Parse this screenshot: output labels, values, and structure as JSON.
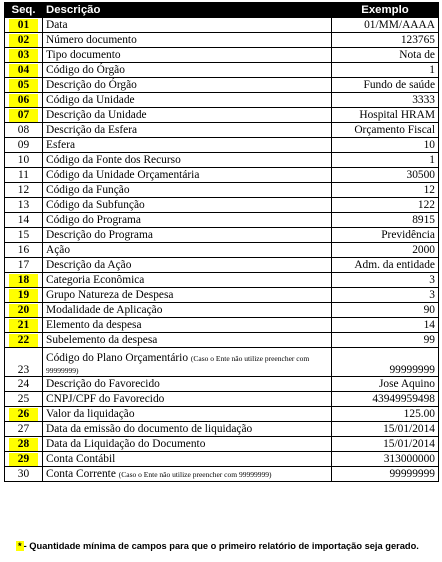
{
  "header": {
    "seq": "Seq.",
    "desc": "Descrição",
    "example": "Exemplo"
  },
  "rows": [
    {
      "seq": "01",
      "hl": true,
      "desc": "Data",
      "ex": "01/MM/AAAA"
    },
    {
      "seq": "02",
      "hl": true,
      "desc": "Número documento",
      "ex": "123765"
    },
    {
      "seq": "03",
      "hl": true,
      "desc": "Tipo documento",
      "ex": "Nota de"
    },
    {
      "seq": "04",
      "hl": true,
      "desc": "Código do Órgão",
      "ex": "1"
    },
    {
      "seq": "05",
      "hl": true,
      "desc": "Descrição do Órgão",
      "ex": "Fundo de saúde"
    },
    {
      "seq": "06",
      "hl": true,
      "desc": "Código da Unidade",
      "ex": "3333"
    },
    {
      "seq": "07",
      "hl": true,
      "desc": "Descrição da Unidade",
      "ex": "Hospital HRAM"
    },
    {
      "seq": "08",
      "hl": false,
      "desc": "Descrição da Esfera",
      "ex": "Orçamento Fiscal"
    },
    {
      "seq": "09",
      "hl": false,
      "desc": "Esfera",
      "ex": "10"
    },
    {
      "seq": "10",
      "hl": false,
      "desc": "Código da Fonte dos Recurso",
      "ex": "1"
    },
    {
      "seq": "11",
      "hl": false,
      "desc": "Código da Unidade Orçamentária",
      "ex": "30500"
    },
    {
      "seq": "12",
      "hl": false,
      "desc": "Código da Função",
      "ex": "12"
    },
    {
      "seq": "13",
      "hl": false,
      "desc": "Código da Subfunção",
      "ex": "122"
    },
    {
      "seq": "14",
      "hl": false,
      "desc": "Código do Programa",
      "ex": "8915"
    },
    {
      "seq": "15",
      "hl": false,
      "desc": "Descrição do Programa",
      "ex": "Previdência"
    },
    {
      "seq": "16",
      "hl": false,
      "desc": "Ação",
      "ex": "2000"
    },
    {
      "seq": "17",
      "hl": false,
      "desc": "Descrição da Ação",
      "ex": "Adm. da entidade"
    },
    {
      "seq": "18",
      "hl": true,
      "desc": "Categoria Econômica",
      "ex": "3"
    },
    {
      "seq": "19",
      "hl": true,
      "desc": "Grupo Natureza de Despesa",
      "ex": "3"
    },
    {
      "seq": "20",
      "hl": true,
      "desc": "Modalidade de Aplicação",
      "ex": "90"
    },
    {
      "seq": "21",
      "hl": true,
      "desc": "Elemento da despesa",
      "ex": "14"
    },
    {
      "seq": "22",
      "hl": true,
      "desc": "Subelemento da despesa",
      "ex": "99"
    },
    {
      "seq": "23",
      "hl": false,
      "desc": "Código do Plano Orçamentário",
      "note": "(Caso o Ente não utilize preencher com 99999999)",
      "ex": "99999999",
      "tall": true
    },
    {
      "seq": "24",
      "hl": false,
      "desc": "Descrição do Favorecido",
      "ex": "Jose Aquino"
    },
    {
      "seq": "25",
      "hl": false,
      "desc": "CNPJ/CPF do Favorecido",
      "ex": "43949959498"
    },
    {
      "seq": "26",
      "hl": true,
      "desc": "Valor da liquidação",
      "ex": "125.00"
    },
    {
      "seq": "27",
      "hl": false,
      "desc": "Data da emissão do documento de liquidação",
      "ex": "15/01/2014"
    },
    {
      "seq": "28",
      "hl": true,
      "desc": "Data da Liquidação do Documento",
      "ex": "15/01/2014"
    },
    {
      "seq": "29",
      "hl": true,
      "desc": "Conta Contábil",
      "ex": "313000000"
    },
    {
      "seq": "30",
      "hl": false,
      "desc": "Conta Corrente",
      "note": "(Caso o Ente não utilize preencher com 99999999)",
      "ex": "99999999"
    }
  ],
  "footnote": {
    "star": "*",
    "text": "- Quantidade mínima de campos para que o primeiro relatório de importação seja gerado."
  }
}
